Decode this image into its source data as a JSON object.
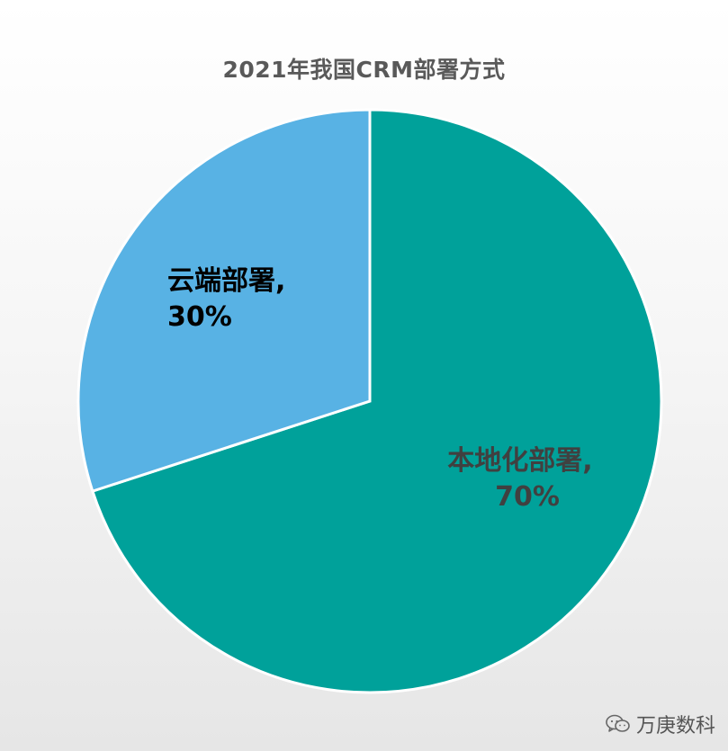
{
  "chart_data": {
    "type": "pie",
    "title": "2021年我国CRM部署方式",
    "slices": [
      {
        "label": "本地化部署,",
        "value": 70,
        "value_label": "70%",
        "color": "#00A19A",
        "label_color": "#404040"
      },
      {
        "label": "云端部署,",
        "value": 30,
        "value_label": "30%",
        "color": "#58B2E4",
        "label_color": "#000000"
      }
    ],
    "start_angle_deg": 0,
    "direction": "clockwise",
    "legend": "none"
  },
  "watermark": {
    "text": "万庚数科",
    "icon": "wechat-icon"
  }
}
